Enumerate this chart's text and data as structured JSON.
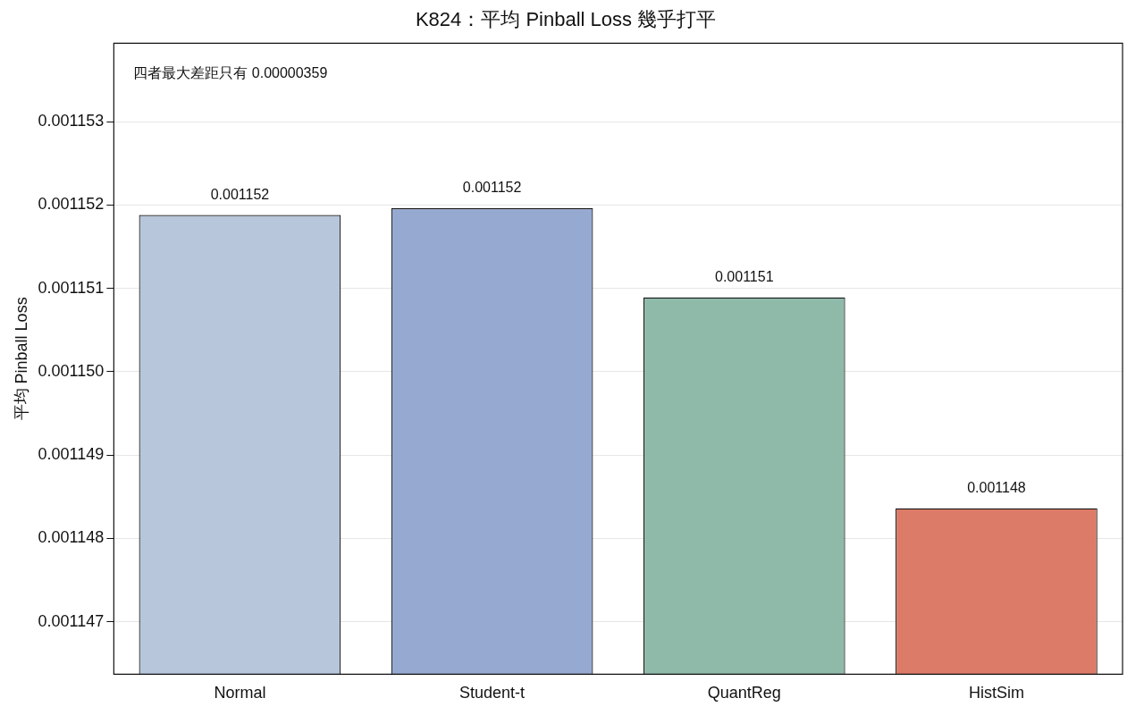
{
  "chart_data": {
    "type": "bar",
    "title": "K824：平均 Pinball Loss 幾乎打平",
    "ylabel": "平均 Pinball Loss",
    "categories": [
      "Normal",
      "Student-t",
      "QuantReg",
      "HistSim"
    ],
    "values": [
      0.00115188,
      0.00115196,
      0.00115089,
      0.00114836
    ],
    "colors": [
      "#b7c6da",
      "#96a9d0",
      "#8fb9a8",
      "#dc7b68"
    ],
    "value_labels": [
      "0.001152",
      "0.001152",
      "0.001151",
      "0.001148"
    ],
    "annotations": [
      "四者最大差距只有 0.00000359"
    ],
    "ylim": [
      0.00114637,
      0.00115394
    ],
    "yticks": [
      0.001147,
      0.001148,
      0.001149,
      {
        "value": 0.00115,
        "label": "0.001150"
      },
      0.001151,
      0.001152,
      0.001153
    ],
    "grid": "y",
    "legend": false
  }
}
